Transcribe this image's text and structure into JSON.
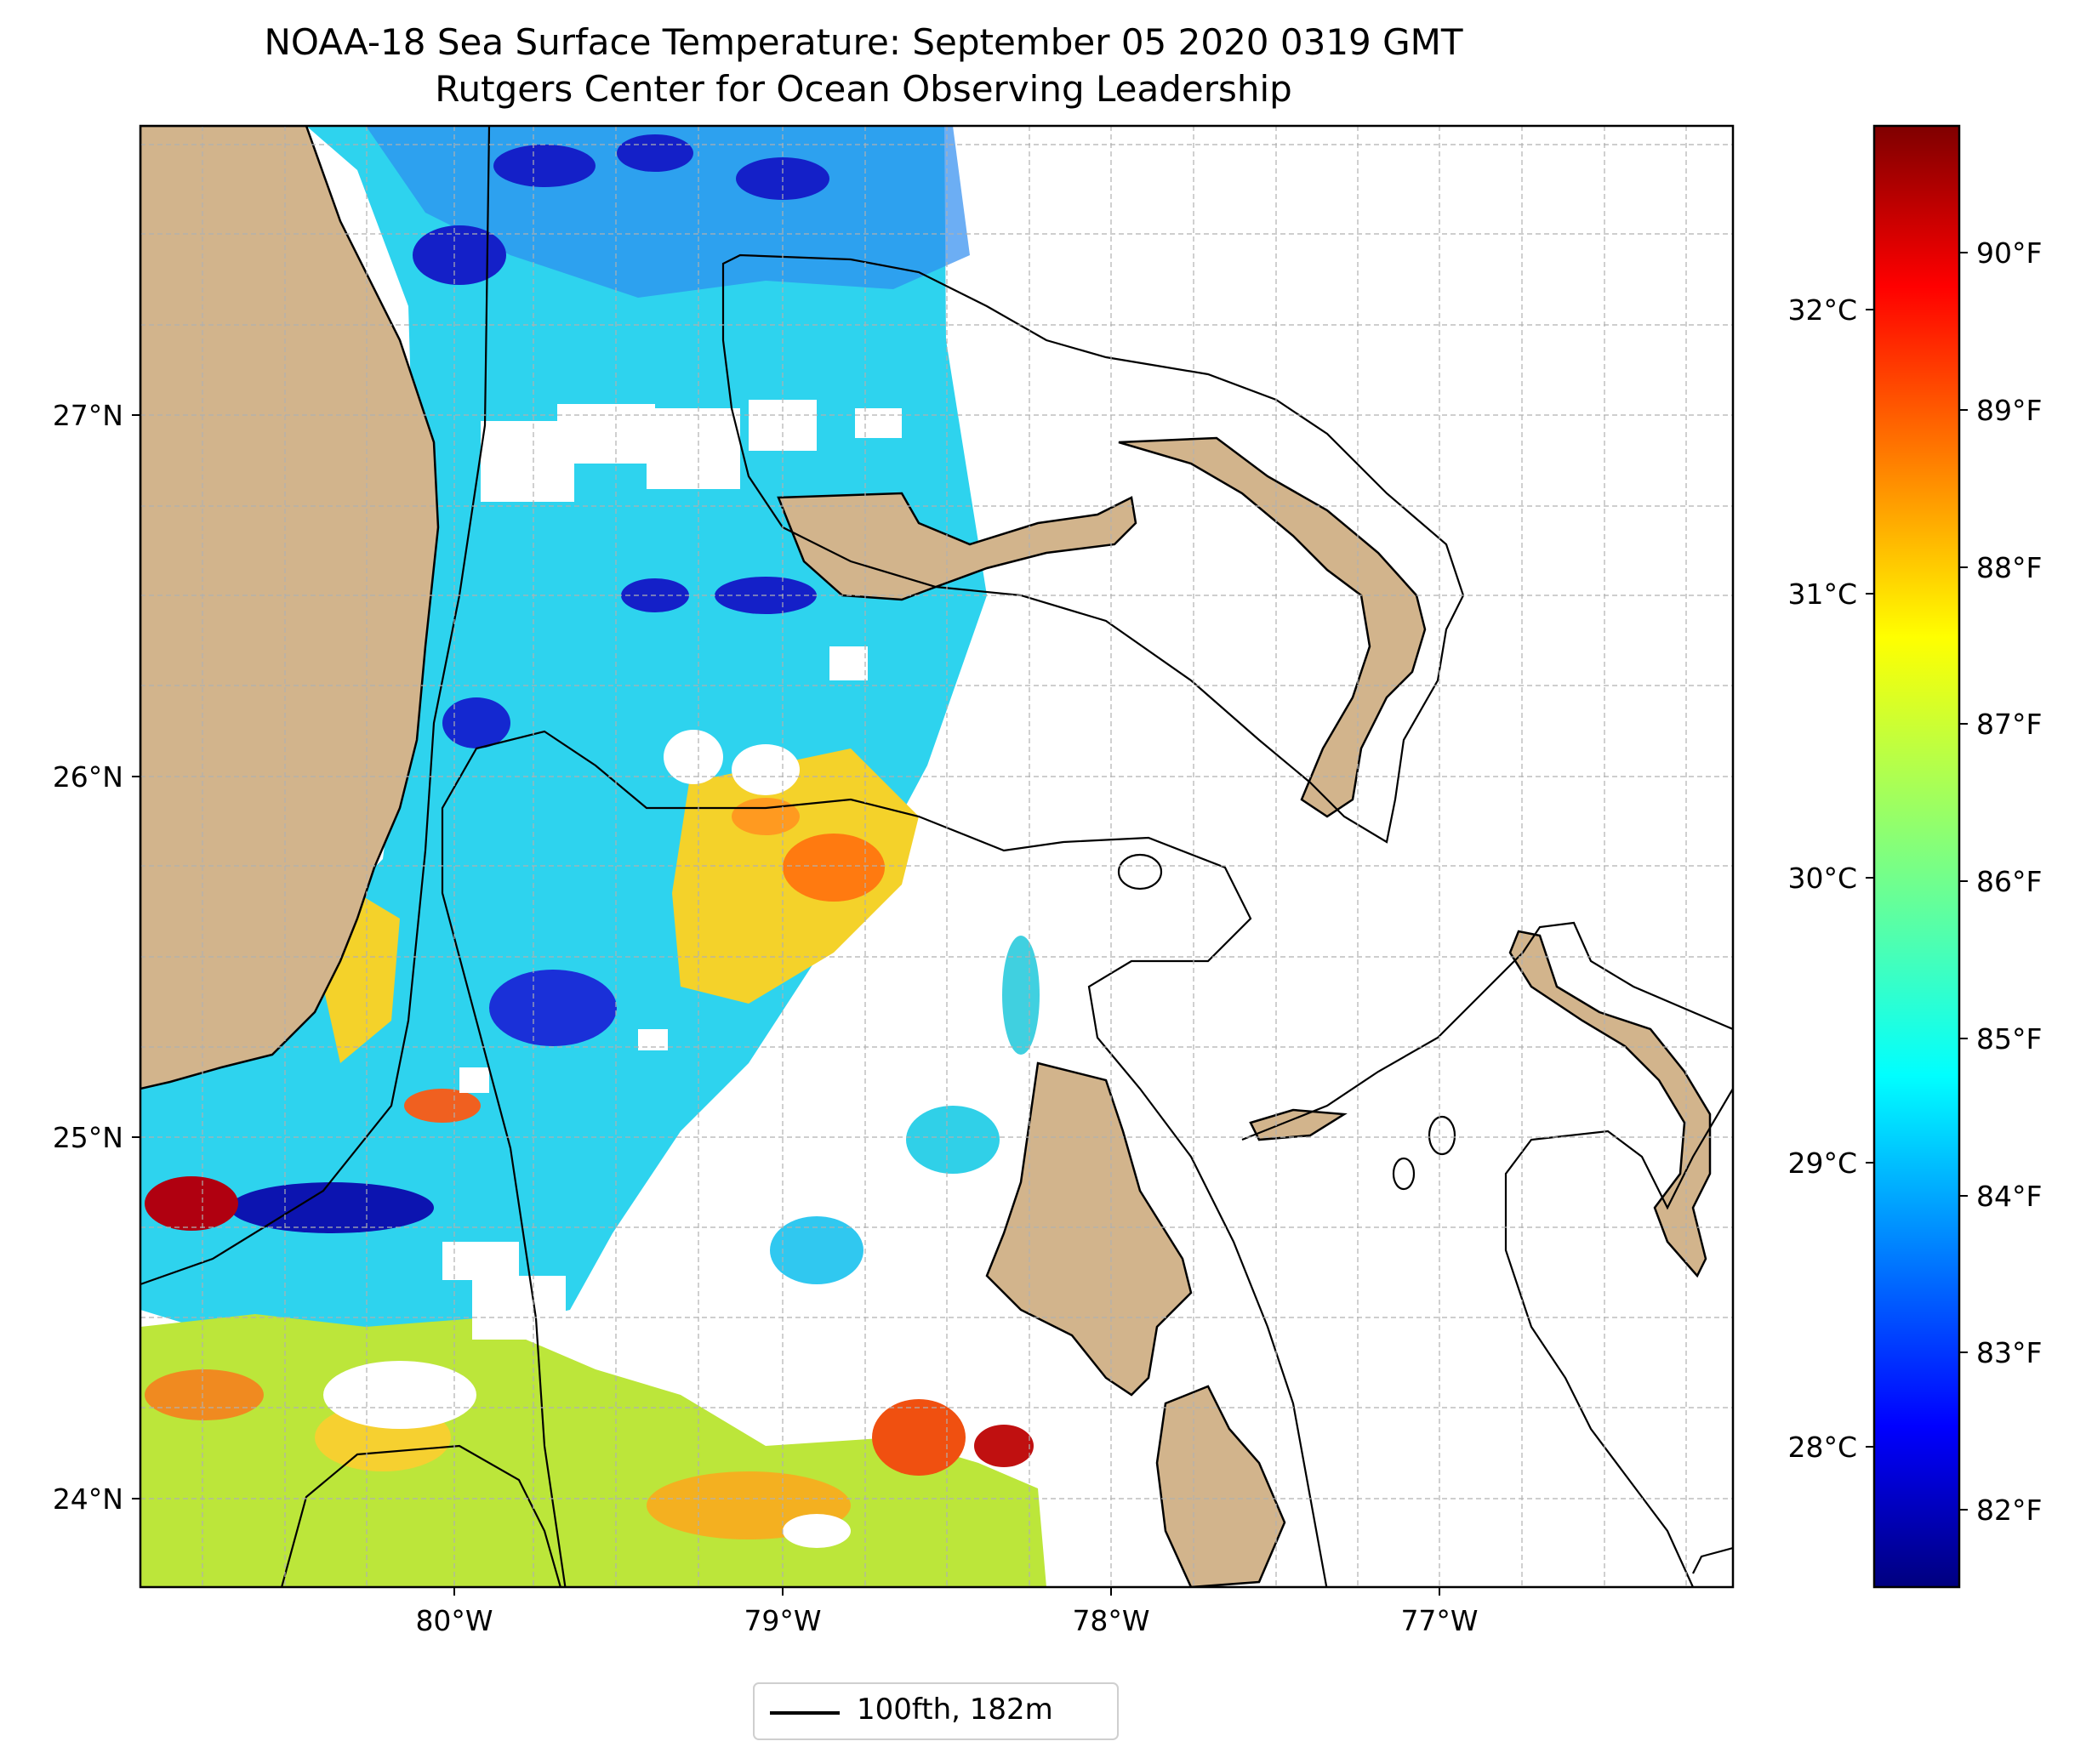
{
  "title": {
    "line1": "NOAA-18 Sea Surface Temperature: September 05 2020 0319 GMT",
    "line2": "Rutgers Center for Ocean Observing Leadership"
  },
  "map": {
    "extent": {
      "lon": [
        -80.95,
        -76.1
      ],
      "lat": [
        23.75,
        27.8
      ]
    },
    "land_color": "#d2b48c",
    "grid": true,
    "lat_ticks": [
      {
        "value": 27,
        "label": "27°N"
      },
      {
        "value": 26,
        "label": "26°N"
      },
      {
        "value": 25,
        "label": "25°N"
      },
      {
        "value": 24,
        "label": "24°N"
      }
    ],
    "lon_ticks": [
      {
        "value": -80,
        "label": "80°W"
      },
      {
        "value": -79,
        "label": "79°W"
      },
      {
        "value": -78,
        "label": "78°W"
      },
      {
        "value": -77,
        "label": "77°W"
      }
    ]
  },
  "colorbar": {
    "colormap": "jet",
    "range_f": [
      81.5,
      90.8
    ],
    "celsius_ticks": [
      "32°C",
      "31°C",
      "30°C",
      "29°C",
      "28°C"
    ],
    "fahrenheit_ticks": [
      "90°F",
      "89°F",
      "88°F",
      "87°F",
      "86°F",
      "85°F",
      "84°F",
      "83°F",
      "82°F"
    ]
  },
  "legend": {
    "label": "100fth, 182m"
  }
}
